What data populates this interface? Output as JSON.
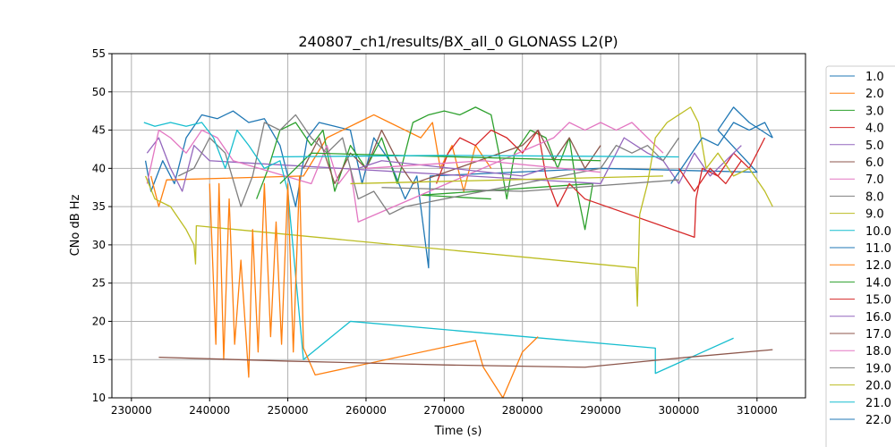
{
  "chart_data": {
    "type": "line",
    "title": "240807_ch1/results/BX_all_0 GLONASS L2(P)",
    "xlabel": "Time (s)",
    "ylabel": "CNo dB Hz",
    "xlim": [
      227500,
      316200
    ],
    "ylim": [
      10,
      55
    ],
    "xticks": [
      230000,
      240000,
      250000,
      260000,
      270000,
      280000,
      290000,
      300000,
      310000
    ],
    "xtick_labels": [
      "230000",
      "240000",
      "250000",
      "260000",
      "270000",
      "280000",
      "290000",
      "300000",
      "310000"
    ],
    "yticks": [
      10,
      15,
      20,
      25,
      30,
      35,
      40,
      45,
      50,
      55
    ],
    "ytick_labels": [
      "10",
      "15",
      "20",
      "25",
      "30",
      "35",
      "40",
      "45",
      "50",
      "55"
    ],
    "grid": true,
    "legend_placement": "right, outside",
    "series": [
      {
        "name": "1.0",
        "color": "#1f77b4",
        "points": [
          [
            231800,
            41
          ],
          [
            232500,
            37
          ],
          [
            234000,
            41
          ],
          [
            235500,
            38
          ],
          [
            237000,
            44
          ],
          [
            239000,
            47
          ],
          [
            241000,
            46.5
          ],
          [
            243000,
            47.5
          ],
          [
            245000,
            46
          ],
          [
            247000,
            46.5
          ],
          [
            249000,
            43
          ],
          [
            250000,
            39
          ],
          [
            251000,
            35
          ],
          [
            252500,
            44
          ],
          [
            254000,
            46
          ],
          [
            256000,
            45.5
          ],
          [
            258000,
            45
          ],
          [
            259500,
            38
          ],
          [
            261000,
            44
          ],
          [
            263000,
            41
          ],
          [
            265000,
            36
          ],
          [
            266500,
            39
          ],
          [
            267500,
            31
          ],
          [
            268000,
            27
          ],
          [
            268200,
            39
          ],
          [
            290000,
            40
          ],
          [
            310000,
            39.5
          ],
          [
            305000,
            45
          ],
          [
            307000,
            48
          ],
          [
            309000,
            46
          ],
          [
            312000,
            44
          ]
        ]
      },
      {
        "name": "2.0",
        "color": "#ff7f0e",
        "points": [
          [
            232500,
            39
          ],
          [
            233500,
            35
          ],
          [
            234500,
            38.5
          ],
          [
            252000,
            39
          ],
          [
            255000,
            44
          ],
          [
            257000,
            45
          ],
          [
            259000,
            46
          ],
          [
            261000,
            47
          ],
          [
            263000,
            46
          ],
          [
            265000,
            45
          ],
          [
            267000,
            44
          ],
          [
            268500,
            46
          ],
          [
            269500,
            40
          ],
          [
            271000,
            43
          ],
          [
            272500,
            37
          ],
          [
            274000,
            43
          ],
          [
            276000,
            40
          ]
        ]
      },
      {
        "name": "3.0",
        "color": "#2ca02c",
        "points": [
          [
            246000,
            36
          ],
          [
            247500,
            40
          ],
          [
            249000,
            45
          ],
          [
            251000,
            46
          ],
          [
            253000,
            43
          ],
          [
            254500,
            45
          ],
          [
            256000,
            37
          ],
          [
            258000,
            43
          ],
          [
            260000,
            40
          ],
          [
            262000,
            44
          ],
          [
            264000,
            38
          ],
          [
            266000,
            46
          ],
          [
            268000,
            47
          ],
          [
            270000,
            47.5
          ],
          [
            272000,
            47
          ],
          [
            274000,
            48
          ],
          [
            276000,
            47
          ],
          [
            277000,
            42
          ],
          [
            278000,
            36
          ],
          [
            279000,
            42
          ],
          [
            281000,
            45
          ],
          [
            283000,
            44
          ],
          [
            284500,
            40
          ],
          [
            286000,
            44
          ],
          [
            287000,
            37
          ],
          [
            288000,
            32
          ],
          [
            289000,
            38
          ],
          [
            267000,
            36.5
          ],
          [
            276000,
            36
          ]
        ]
      },
      {
        "name": "4.0",
        "color": "#d62728",
        "points": [
          [
            269000,
            38
          ],
          [
            270500,
            42
          ],
          [
            272000,
            44
          ],
          [
            274000,
            43
          ],
          [
            276000,
            45
          ],
          [
            278000,
            44
          ],
          [
            280000,
            42
          ],
          [
            282000,
            45
          ],
          [
            283000,
            39
          ],
          [
            284500,
            35
          ],
          [
            286000,
            38
          ],
          [
            288000,
            36
          ],
          [
            302000,
            31
          ],
          [
            302200,
            36
          ],
          [
            303000,
            40
          ],
          [
            305000,
            39
          ],
          [
            307000,
            42
          ],
          [
            309000,
            40
          ],
          [
            311000,
            44
          ]
        ]
      },
      {
        "name": "5.0",
        "color": "#9467bd",
        "points": [
          [
            232000,
            42
          ],
          [
            233500,
            44
          ],
          [
            235000,
            40
          ],
          [
            236500,
            37
          ],
          [
            238000,
            43
          ],
          [
            240000,
            41
          ],
          [
            290000,
            38
          ],
          [
            293000,
            44
          ],
          [
            296000,
            42
          ],
          [
            298000,
            41
          ],
          [
            300000,
            38
          ],
          [
            302000,
            42
          ],
          [
            304000,
            39
          ],
          [
            306000,
            41
          ],
          [
            308000,
            43
          ]
        ]
      },
      {
        "name": "6.0",
        "color": "#8c564b",
        "points": [
          [
            252000,
            40
          ],
          [
            254000,
            44
          ],
          [
            256000,
            38
          ],
          [
            258000,
            42
          ],
          [
            260000,
            40
          ],
          [
            262000,
            45
          ],
          [
            264000,
            41
          ],
          [
            266000,
            38
          ],
          [
            280000,
            43
          ],
          [
            282000,
            45
          ],
          [
            284000,
            41
          ],
          [
            286000,
            44
          ],
          [
            288000,
            40
          ],
          [
            290000,
            43
          ]
        ]
      },
      {
        "name": "7.0",
        "color": "#e377c2",
        "points": [
          [
            232000,
            38
          ],
          [
            233500,
            45
          ],
          [
            235000,
            44
          ],
          [
            237000,
            42
          ],
          [
            239000,
            45
          ],
          [
            241000,
            44
          ],
          [
            243000,
            41
          ],
          [
            253000,
            38
          ],
          [
            255000,
            43
          ],
          [
            256500,
            38
          ],
          [
            258000,
            40
          ],
          [
            259000,
            33
          ],
          [
            284000,
            44
          ],
          [
            286000,
            46
          ],
          [
            288000,
            45
          ],
          [
            290000,
            46
          ],
          [
            292000,
            45
          ],
          [
            294000,
            46
          ],
          [
            296000,
            44
          ],
          [
            298000,
            42
          ]
        ]
      },
      {
        "name": "8.0",
        "color": "#7f7f7f",
        "points": [
          [
            236000,
            39
          ],
          [
            238000,
            40
          ],
          [
            240000,
            44
          ],
          [
            242000,
            42
          ],
          [
            244000,
            35
          ],
          [
            245500,
            39
          ],
          [
            247000,
            46
          ],
          [
            249000,
            45
          ],
          [
            251000,
            47
          ],
          [
            253000,
            44
          ],
          [
            255000,
            42
          ],
          [
            257000,
            44
          ],
          [
            259000,
            36
          ],
          [
            261000,
            37
          ],
          [
            263000,
            34
          ],
          [
            265000,
            35
          ],
          [
            290000,
            40
          ],
          [
            292000,
            43
          ],
          [
            294000,
            42
          ],
          [
            296000,
            43
          ],
          [
            298000,
            41
          ],
          [
            300000,
            44
          ]
        ]
      },
      {
        "name": "9.0",
        "color": "#bcbd22",
        "points": [
          [
            231800,
            39
          ],
          [
            233000,
            36
          ],
          [
            235000,
            35
          ],
          [
            237000,
            32
          ],
          [
            238000,
            30
          ],
          [
            238200,
            27.5
          ],
          [
            238300,
            32.5
          ],
          [
            294500,
            27
          ],
          [
            294700,
            22
          ],
          [
            295000,
            34
          ],
          [
            296000,
            38
          ],
          [
            297000,
            44
          ],
          [
            298500,
            46
          ],
          [
            300000,
            47
          ],
          [
            301500,
            48
          ],
          [
            302500,
            46
          ],
          [
            303500,
            40
          ],
          [
            305000,
            42
          ],
          [
            307000,
            39
          ],
          [
            309000,
            40
          ],
          [
            311000,
            37
          ],
          [
            312000,
            35
          ]
        ]
      },
      {
        "name": "10.0",
        "color": "#17becf",
        "points": [
          [
            231600,
            46
          ],
          [
            233000,
            45.5
          ],
          [
            235000,
            46
          ],
          [
            237000,
            45.5
          ],
          [
            239000,
            46
          ],
          [
            240500,
            44
          ],
          [
            242000,
            40
          ],
          [
            243500,
            45
          ],
          [
            245000,
            43
          ],
          [
            247000,
            40
          ],
          [
            249000,
            41
          ],
          [
            250000,
            37
          ],
          [
            252000,
            15
          ],
          [
            258000,
            20
          ],
          [
            297000,
            16.5
          ],
          [
            297000,
            13.2
          ],
          [
            307000,
            17.8
          ]
        ]
      },
      {
        "name": "11.0",
        "color": "#1f77b4",
        "points": [
          [
            299000,
            38
          ],
          [
            301000,
            41
          ],
          [
            303000,
            44
          ],
          [
            305000,
            43
          ],
          [
            307000,
            46
          ],
          [
            309000,
            45
          ],
          [
            311000,
            46
          ],
          [
            312000,
            44
          ]
        ]
      },
      {
        "name": "12.0",
        "color": "#ff7f0e",
        "points": [
          [
            240000,
            38
          ],
          [
            240800,
            17
          ],
          [
            241200,
            38
          ],
          [
            241800,
            15
          ],
          [
            242500,
            36
          ],
          [
            243200,
            17
          ],
          [
            244000,
            28
          ],
          [
            245000,
            12.7
          ],
          [
            245500,
            32
          ],
          [
            246200,
            16
          ],
          [
            247000,
            38
          ],
          [
            247800,
            18
          ],
          [
            248500,
            33
          ],
          [
            249200,
            17
          ],
          [
            250000,
            38
          ],
          [
            250700,
            16
          ],
          [
            251500,
            39
          ],
          [
            252000,
            16.5
          ],
          [
            253500,
            13
          ],
          [
            274000,
            17.5
          ],
          [
            275000,
            14
          ],
          [
            277500,
            10
          ],
          [
            280000,
            16
          ],
          [
            282000,
            18
          ]
        ]
      },
      {
        "name": "14.0",
        "color": "#2ca02c",
        "points": [
          [
            249000,
            38
          ],
          [
            251000,
            40
          ],
          [
            253000,
            42
          ],
          [
            290000,
            41
          ]
        ]
      },
      {
        "name": "15.0",
        "color": "#d62728",
        "points": [
          [
            300000,
            40
          ],
          [
            302000,
            37
          ],
          [
            304000,
            40
          ],
          [
            306000,
            38
          ],
          [
            308000,
            41
          ]
        ]
      },
      {
        "name": "16.0",
        "color": "#9467bd",
        "points": [
          [
            259000,
            40
          ],
          [
            262000,
            41
          ],
          [
            280000,
            39
          ],
          [
            283000,
            40
          ]
        ]
      },
      {
        "name": "17.0",
        "color": "#8c564b",
        "points": [
          [
            233500,
            15.3
          ],
          [
            250000,
            14.8
          ],
          [
            270000,
            14.3
          ],
          [
            288000,
            14
          ],
          [
            300000,
            15.2
          ],
          [
            312000,
            16.3
          ]
        ]
      },
      {
        "name": "18.0",
        "color": "#e377c2",
        "points": [
          [
            260000,
            40
          ],
          [
            275000,
            41
          ],
          [
            290000,
            39.5
          ]
        ]
      },
      {
        "name": "19.0",
        "color": "#7f7f7f",
        "points": [
          [
            262000,
            37.5
          ],
          [
            280000,
            37
          ],
          [
            300000,
            38.5
          ]
        ]
      },
      {
        "name": "20.0",
        "color": "#bcbd22",
        "points": [
          [
            258000,
            38
          ],
          [
            278000,
            38.5
          ],
          [
            298000,
            39
          ]
        ]
      },
      {
        "name": "21.0",
        "color": "#17becf",
        "points": [
          [
            248000,
            41.5
          ],
          [
            270000,
            41.7
          ],
          [
            300000,
            41.5
          ]
        ]
      },
      {
        "name": "22.0",
        "color": "#1f77b4",
        "points": []
      }
    ]
  }
}
